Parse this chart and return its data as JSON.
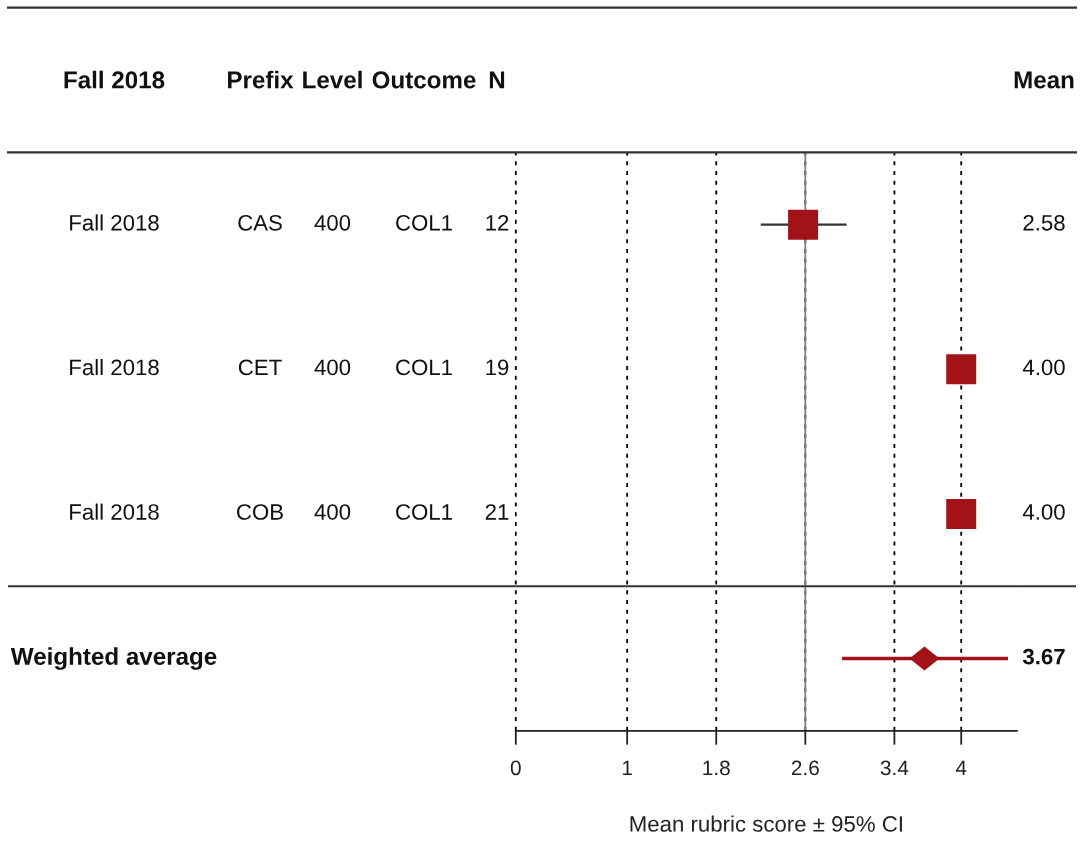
{
  "chart_data": {
    "type": "scatter",
    "orientation": "horizontal",
    "categories": [
      null,
      null,
      null,
      null
    ],
    "series": [
      {
        "color": "#a11219",
        "marker": "square",
        "values": [
          2.58,
          4.0,
          4.0,
          null
        ],
        "errors": [
          [
            2.2,
            2.97
          ],
          null,
          null,
          null
        ],
        "value_labels": [
          "2.58",
          "4.00",
          "4.00",
          null
        ]
      },
      {
        "color": "#a11219",
        "marker": "diamond",
        "values": [
          null,
          null,
          null,
          3.67
        ],
        "errors": [
          null,
          null,
          null,
          [
            2.93,
            4.42
          ]
        ]
      }
    ],
    "xlabel": "Mean rubric score ± 95% CI",
    "xlim": [
      0,
      4.5
    ],
    "xticks": [
      0,
      1,
      1.8,
      2.6,
      3.4,
      4
    ],
    "grid": "x",
    "ref_lines": [
      {
        "axis": "x",
        "value": 2.6,
        "color": "#808080"
      }
    ],
    "annotations": [
      "Fall 2018",
      "Prefix",
      "Level",
      "Outcome",
      "N",
      "Mean",
      "Fall 2018",
      "CAS",
      "400",
      "COL1",
      "12",
      "Fall 2018",
      "CET",
      "400",
      "COL1",
      "19",
      "Fall 2018",
      "COB",
      "400",
      "COL1",
      "21",
      "Weighted average",
      "3.67"
    ]
  }
}
